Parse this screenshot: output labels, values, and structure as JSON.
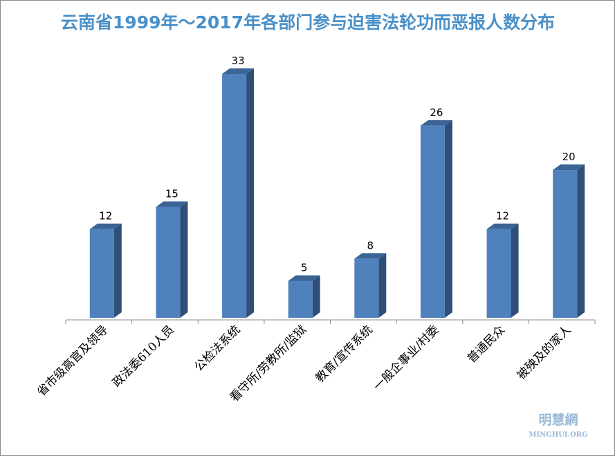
{
  "chart_data": {
    "type": "bar",
    "title": "云南省1999年～2017年各部门参与迫害法轮功而恶报人数分布",
    "categories": [
      "省市级高官及领导",
      "政法委610人员",
      "公检法系统",
      "看守所/劳教所/监狱",
      "教育/宣传系统",
      "一般企事业/村委",
      "普通民众",
      "被殃及的家人"
    ],
    "values": [
      12,
      15,
      33,
      5,
      8,
      26,
      12,
      20
    ],
    "ylim": [
      0,
      33
    ],
    "grid": false,
    "legend": "none",
    "bar_color": "#4f81bd",
    "bar_side_color": "#2f4f78",
    "bar_top_color": "#3c6596"
  },
  "watermark": {
    "cn": "明慧網",
    "en": "MINGHUI.ORG"
  }
}
